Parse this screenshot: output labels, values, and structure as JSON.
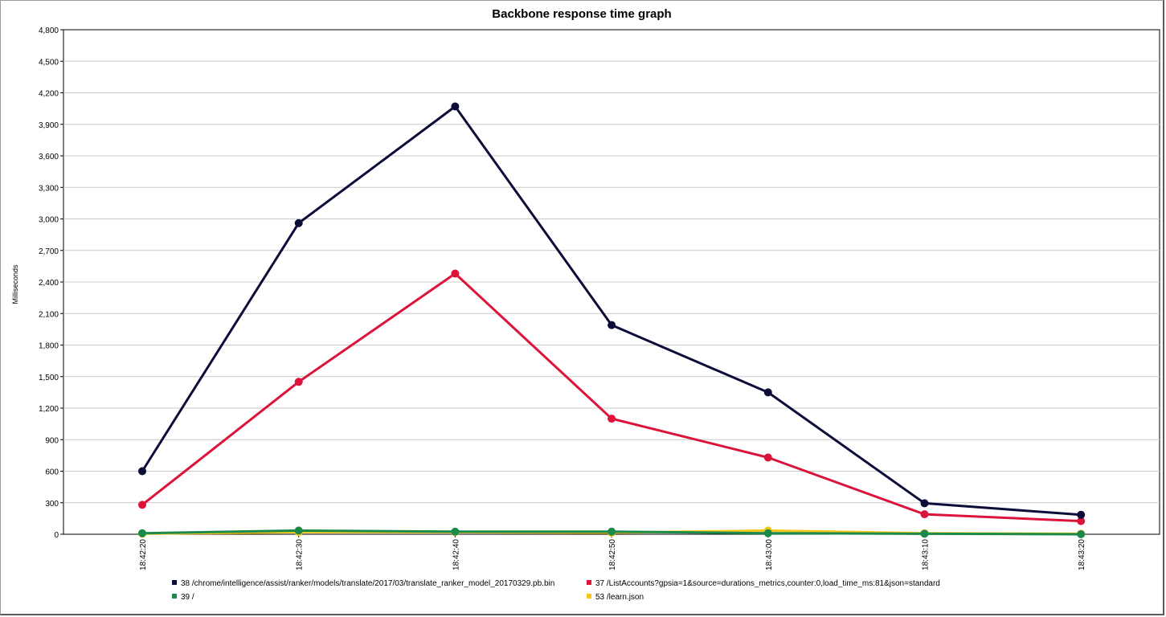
{
  "chart_data": {
    "type": "line",
    "title": "Backbone response time graph",
    "xlabel": "",
    "ylabel": "Milliseconds",
    "x": [
      "18:42:20",
      "18:42:30",
      "18:42:40",
      "18:42:50",
      "18:43:00",
      "18:43:10",
      "18:43:20"
    ],
    "ylim": [
      0,
      4800
    ],
    "yticks": [
      0,
      300,
      600,
      900,
      1200,
      1500,
      1800,
      2100,
      2400,
      2700,
      3000,
      3300,
      3600,
      3900,
      4200,
      4500,
      4800
    ],
    "ytick_labels": [
      "0",
      "300",
      "600",
      "900",
      "1,200",
      "1,500",
      "1,800",
      "2,100",
      "2,400",
      "2,700",
      "3,000",
      "3,300",
      "3,600",
      "3,900",
      "4,200",
      "4,500",
      "4,800"
    ],
    "grid": true,
    "legend_position": "bottom",
    "series": [
      {
        "name": "38 /chrome/intelligence/assist/ranker/models/translate/2017/03/translate_ranker_model_20170329.pb.bin",
        "color": "#0d0d3a",
        "values": [
          600,
          2960,
          4070,
          1990,
          1350,
          295,
          185
        ]
      },
      {
        "name": "37 /ListAccounts?gpsia=1&source=durations_metrics,counter:0,load_time_ms:81&json=standard",
        "color": "#dc143c",
        "values": [
          280,
          1450,
          2480,
          1100,
          730,
          190,
          125
        ]
      },
      {
        "name": "39 /",
        "color": "#1a8a4a",
        "values": [
          10,
          35,
          25,
          25,
          10,
          5,
          0
        ]
      },
      {
        "name": "53 /learn.json",
        "color": "#f5c518",
        "values": [
          5,
          20,
          20,
          15,
          35,
          10,
          5
        ]
      }
    ]
  }
}
